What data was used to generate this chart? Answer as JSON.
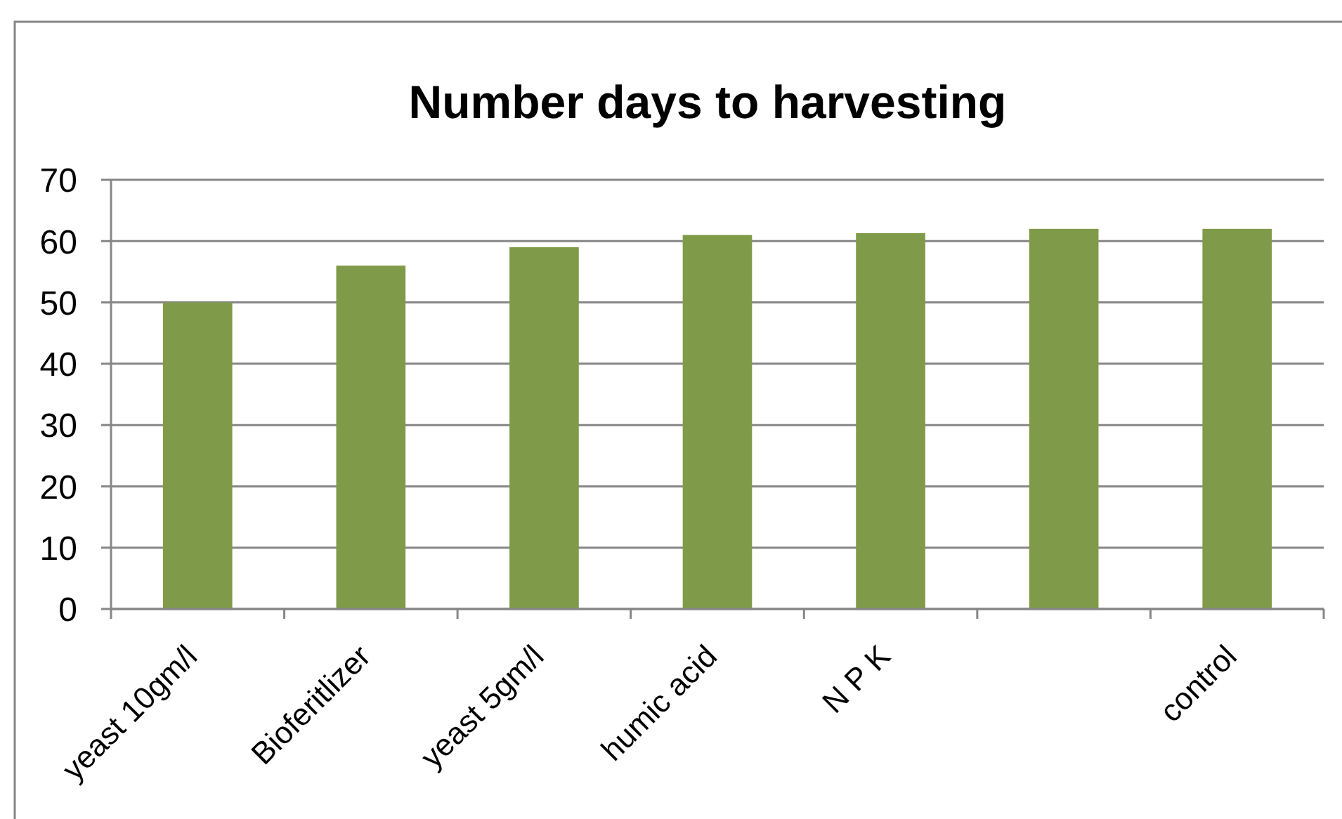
{
  "chart_data": {
    "type": "bar",
    "title": "Number days to harvesting",
    "categories": [
      "yeast 10gm/l",
      "Bioferitlizer",
      "yeast 5gm/l",
      "humic acid",
      "N P K",
      null,
      "control"
    ],
    "values": [
      50,
      56,
      59,
      61,
      61.3,
      62,
      62
    ],
    "color": "#7f9a48",
    "ylim": [
      0,
      70
    ],
    "yticks": [
      0,
      10,
      20,
      30,
      40,
      50,
      60,
      70
    ],
    "grid": "y"
  }
}
